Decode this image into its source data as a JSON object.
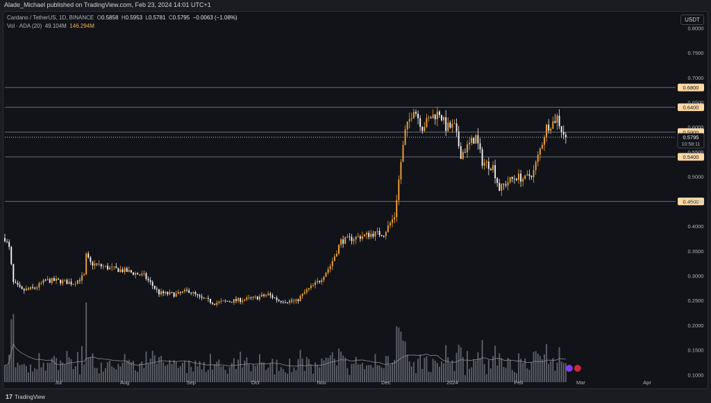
{
  "header": {
    "attribution": "Alade_Michael published on TradingView.com, Feb 23, 2024 14:01 UTC+1"
  },
  "legend": {
    "symbol": "Cardano / TetherUS, 1D, BINANCE",
    "open_label": "O",
    "open": "0.5858",
    "high_label": "H",
    "high": "0.5953",
    "low_label": "L",
    "low": "0.5781",
    "close_label": "C",
    "close": "0.5795",
    "change": "−0.0063 (−1.08%)",
    "volume_label": "Vol · ADA (20)",
    "volume_ma": "49.104M",
    "volume_value": "146.294M"
  },
  "currency_button": "USDT",
  "footer": {
    "brand": "TradingView",
    "logo_glyph": "17"
  },
  "colors": {
    "background": "#121318",
    "up": "#f0a23b",
    "down": "#f2f2f2",
    "level_line": "#6b6e78",
    "label_box": "#fcd9a4",
    "price_line": "#c9ccd4"
  },
  "chart_data": {
    "type": "candlestick",
    "title": "Cardano / TetherUS, 1D, BINANCE",
    "y_axis": {
      "ticks": [
        "0.8000",
        "0.7500",
        "0.7000",
        "0.6500",
        "0.6000",
        "0.5500",
        "0.5000",
        "0.4500",
        "0.4000",
        "0.3500",
        "0.3000",
        "0.2500",
        "0.2000",
        "0.1500",
        "0.1000"
      ],
      "tick_values": [
        0.8,
        0.75,
        0.7,
        0.65,
        0.6,
        0.55,
        0.5,
        0.45,
        0.4,
        0.35,
        0.3,
        0.25,
        0.2,
        0.15,
        0.1
      ],
      "range": [
        0.085,
        0.83
      ]
    },
    "x_axis": {
      "ticks": [
        "Jul",
        "Aug",
        "Sep",
        "Oct",
        "Nov",
        "Dec",
        "2024",
        "Feb",
        "Mar",
        "Apr"
      ],
      "tick_dates": [
        "2023-07-01",
        "2023-08-01",
        "2023-09-01",
        "2023-10-01",
        "2023-11-01",
        "2023-12-01",
        "2024-01-01",
        "2024-02-01",
        "2024-03-01",
        "2024-04-01"
      ],
      "range": [
        "2023-06-06",
        "2024-04-13"
      ]
    },
    "horizontal_levels": [
      {
        "value": 0.68,
        "label": "0.6800"
      },
      {
        "value": 0.64,
        "label": "0.6400"
      },
      {
        "value": 0.59,
        "label": "0.5900"
      },
      {
        "value": 0.54,
        "label": "0.5400"
      },
      {
        "value": 0.45,
        "label": "0.4500"
      }
    ],
    "current_price": {
      "value": 0.5795,
      "label": "0.5795",
      "countdown": "10:58:11"
    },
    "close_anchors": [
      [
        "2023-06-06",
        0.376
      ],
      [
        "2023-06-08",
        0.355
      ],
      [
        "2023-06-10",
        0.285
      ],
      [
        "2023-06-14",
        0.27
      ],
      [
        "2023-06-20",
        0.275
      ],
      [
        "2023-06-25",
        0.29
      ],
      [
        "2023-06-30",
        0.29
      ],
      [
        "2023-07-08",
        0.285
      ],
      [
        "2023-07-13",
        0.3
      ],
      [
        "2023-07-14",
        0.34
      ],
      [
        "2023-07-16",
        0.325
      ],
      [
        "2023-07-25",
        0.315
      ],
      [
        "2023-08-01",
        0.31
      ],
      [
        "2023-08-10",
        0.3
      ],
      [
        "2023-08-17",
        0.265
      ],
      [
        "2023-08-25",
        0.262
      ],
      [
        "2023-08-31",
        0.27
      ],
      [
        "2023-09-05",
        0.255
      ],
      [
        "2023-09-12",
        0.245
      ],
      [
        "2023-09-22",
        0.25
      ],
      [
        "2023-10-01",
        0.255
      ],
      [
        "2023-10-07",
        0.262
      ],
      [
        "2023-10-12",
        0.25
      ],
      [
        "2023-10-20",
        0.248
      ],
      [
        "2023-10-25",
        0.27
      ],
      [
        "2023-10-31",
        0.29
      ],
      [
        "2023-11-05",
        0.32
      ],
      [
        "2023-11-10",
        0.37
      ],
      [
        "2023-11-15",
        0.375
      ],
      [
        "2023-11-20",
        0.38
      ],
      [
        "2023-11-25",
        0.385
      ],
      [
        "2023-11-30",
        0.385
      ],
      [
        "2023-12-05",
        0.42
      ],
      [
        "2023-12-08",
        0.53
      ],
      [
        "2023-12-10",
        0.59
      ],
      [
        "2023-12-14",
        0.64
      ],
      [
        "2023-12-18",
        0.6
      ],
      [
        "2023-12-22",
        0.62
      ],
      [
        "2023-12-26",
        0.63
      ],
      [
        "2023-12-29",
        0.6
      ],
      [
        "2024-01-02",
        0.6
      ],
      [
        "2024-01-05",
        0.545
      ],
      [
        "2024-01-08",
        0.56
      ],
      [
        "2024-01-12",
        0.58
      ],
      [
        "2024-01-15",
        0.53
      ],
      [
        "2024-01-20",
        0.52
      ],
      [
        "2024-01-23",
        0.475
      ],
      [
        "2024-01-27",
        0.49
      ],
      [
        "2024-01-31",
        0.5
      ],
      [
        "2024-02-04",
        0.495
      ],
      [
        "2024-02-08",
        0.51
      ],
      [
        "2024-02-11",
        0.555
      ],
      [
        "2024-02-14",
        0.6
      ],
      [
        "2024-02-17",
        0.61
      ],
      [
        "2024-02-19",
        0.62
      ],
      [
        "2024-02-21",
        0.595
      ],
      [
        "2024-02-23",
        0.5795
      ]
    ],
    "volume": {
      "series_label": "Vol · ADA (20)",
      "ma_value": "49.104M",
      "last_value": "146.294M",
      "bar_color": "#5d6069",
      "ma_color": "#8c8f99"
    }
  }
}
